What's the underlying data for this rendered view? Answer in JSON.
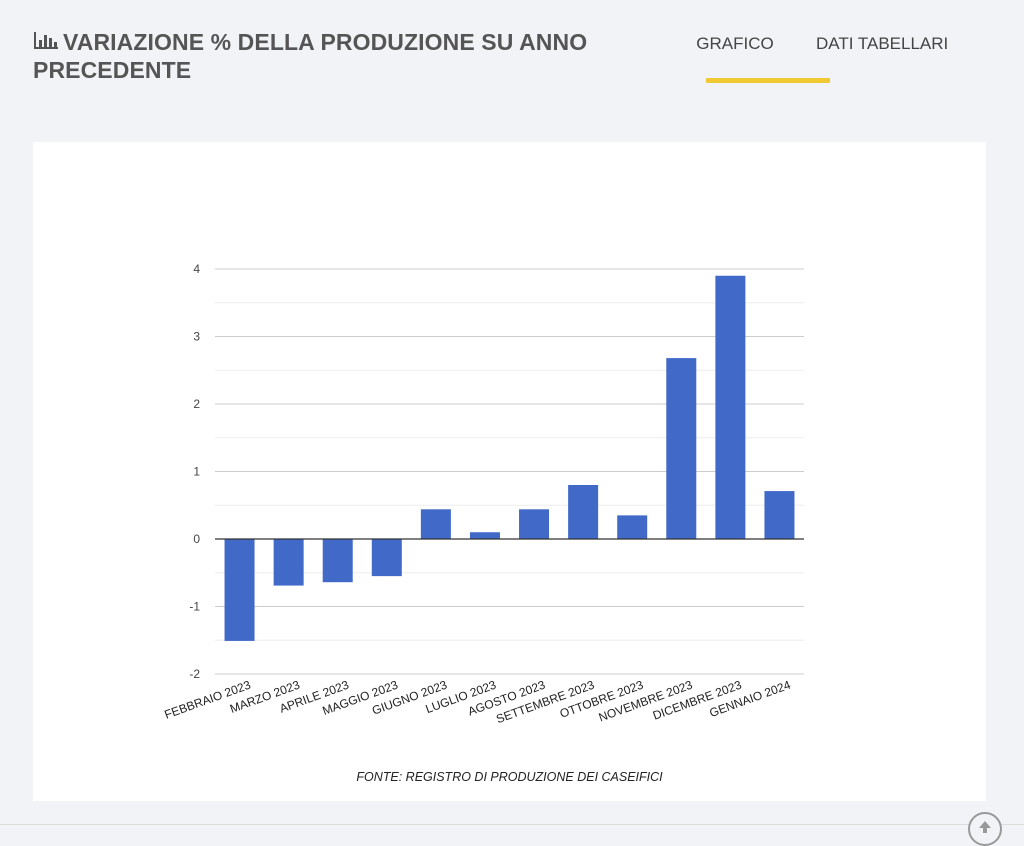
{
  "header": {
    "icon": "bar-chart-icon",
    "title": "VARIAZIONE % DELLA PRODUZIONE SU ANNO PRECEDENTE"
  },
  "tabs": [
    {
      "label": "GRAFICO",
      "active": true
    },
    {
      "label": "DATI TABELLARI",
      "active": false
    }
  ],
  "chart_data": {
    "type": "bar",
    "categories": [
      "FEBBRAIO 2023",
      "MARZO 2023",
      "APRILE 2023",
      "MAGGIO 2023",
      "GIUGNO 2023",
      "LUGLIO 2023",
      "AGOSTO 2023",
      "SETTEMBRE 2023",
      "OTTOBRE 2023",
      "NOVEMBRE 2023",
      "DICEMBRE 2023",
      "GENNAIO 2024"
    ],
    "values": [
      -1.51,
      -0.69,
      -0.64,
      -0.55,
      0.44,
      0.1,
      0.44,
      0.8,
      0.35,
      2.68,
      3.9,
      0.71
    ],
    "ylim": [
      -2,
      4
    ],
    "yticks": [
      -2,
      -1,
      0,
      1,
      2,
      3,
      4
    ],
    "bar_color": "#4169c8",
    "grid": true,
    "source": "FONTE: REGISTRO DI PRODUZIONE DEI CASEIFICI"
  },
  "scroll_top_icon": "arrow-up-icon"
}
